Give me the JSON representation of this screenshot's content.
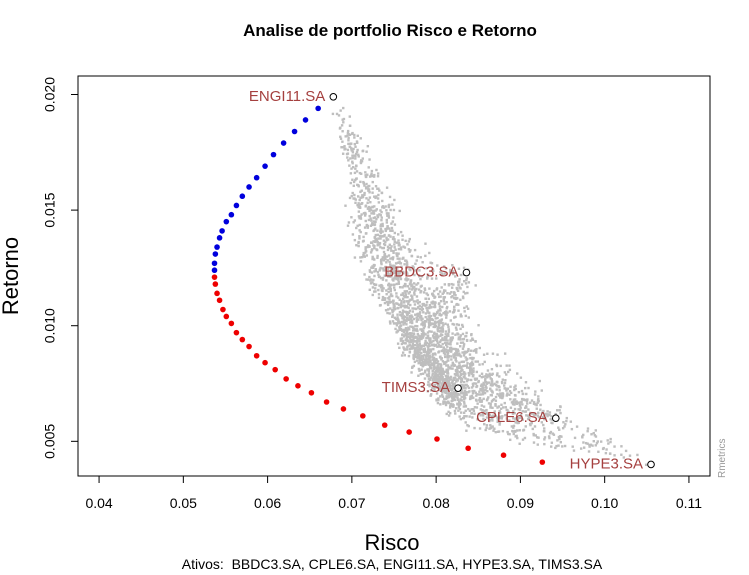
{
  "chart_data": {
    "type": "scatter",
    "title": "Analise de portfolio Risco e Retorno",
    "xlabel": "Risco",
    "ylabel": "Retorno",
    "caption": "Ativos:  BBDC3.SA, CPLE6.SA, ENGI11.SA, HYPE3.SA, TIMS3.SA",
    "credit": "Rmetrics",
    "xlim": [
      0.0375,
      0.1125
    ],
    "ylim": [
      0.0035,
      0.0208
    ],
    "x_ticks": [
      "0.04",
      "0.05",
      "0.06",
      "0.07",
      "0.08",
      "0.09",
      "0.10",
      "0.11"
    ],
    "x_tick_values": [
      0.04,
      0.05,
      0.06,
      0.07,
      0.08,
      0.09,
      0.1,
      0.11
    ],
    "y_ticks": [
      "0.005",
      "0.010",
      "0.015",
      "0.020"
    ],
    "y_tick_values": [
      0.005,
      0.01,
      0.015,
      0.02
    ],
    "grid": false,
    "colors": {
      "efficient": "#0000dd",
      "inefficient": "#ee0000",
      "random": "#bebebe",
      "label": "#a5403f"
    },
    "assets": [
      {
        "name": "ENGI11.SA",
        "x": 0.0678,
        "y": 0.0199
      },
      {
        "name": "BBDC3.SA",
        "x": 0.0836,
        "y": 0.0123
      },
      {
        "name": "TIMS3.SA",
        "x": 0.0826,
        "y": 0.0073
      },
      {
        "name": "CPLE6.SA",
        "x": 0.0942,
        "y": 0.006
      },
      {
        "name": "HYPE3.SA",
        "x": 0.1055,
        "y": 0.004
      }
    ],
    "efficient_frontier": [
      [
        0.0678,
        0.0199
      ],
      [
        0.066,
        0.0194
      ],
      [
        0.0645,
        0.0189
      ],
      [
        0.0632,
        0.0184
      ],
      [
        0.0619,
        0.0179
      ],
      [
        0.0607,
        0.0174
      ],
      [
        0.0597,
        0.0169
      ],
      [
        0.0587,
        0.0164
      ],
      [
        0.0578,
        0.016
      ],
      [
        0.057,
        0.0156
      ],
      [
        0.0563,
        0.0152
      ],
      [
        0.0557,
        0.0148
      ],
      [
        0.0551,
        0.0145
      ],
      [
        0.0546,
        0.0141
      ],
      [
        0.0543,
        0.0138
      ],
      [
        0.054,
        0.0134
      ],
      [
        0.0538,
        0.0131
      ],
      [
        0.0537,
        0.0127
      ],
      [
        0.0537,
        0.0124
      ]
    ],
    "inefficient_frontier": [
      [
        0.0537,
        0.0121
      ],
      [
        0.0538,
        0.0118
      ],
      [
        0.054,
        0.0114
      ],
      [
        0.0543,
        0.0111
      ],
      [
        0.0547,
        0.0107
      ],
      [
        0.0551,
        0.0104
      ],
      [
        0.0557,
        0.0101
      ],
      [
        0.0563,
        0.0097
      ],
      [
        0.057,
        0.0094
      ],
      [
        0.0578,
        0.0091
      ],
      [
        0.0587,
        0.0087
      ],
      [
        0.0597,
        0.0084
      ],
      [
        0.0609,
        0.0081
      ],
      [
        0.0622,
        0.0077
      ],
      [
        0.0636,
        0.0074
      ],
      [
        0.0652,
        0.0071
      ],
      [
        0.067,
        0.0067
      ],
      [
        0.069,
        0.0064
      ],
      [
        0.0713,
        0.0061
      ],
      [
        0.0739,
        0.0057
      ],
      [
        0.0768,
        0.0054
      ],
      [
        0.0801,
        0.0051
      ],
      [
        0.0838,
        0.0047
      ],
      [
        0.088,
        0.0044
      ],
      [
        0.0926,
        0.0041
      ]
    ],
    "random_portfolios": {
      "count": 2600,
      "description_of_shape": "dense gray cloud filling the region between the frontier and the individual assets"
    }
  }
}
